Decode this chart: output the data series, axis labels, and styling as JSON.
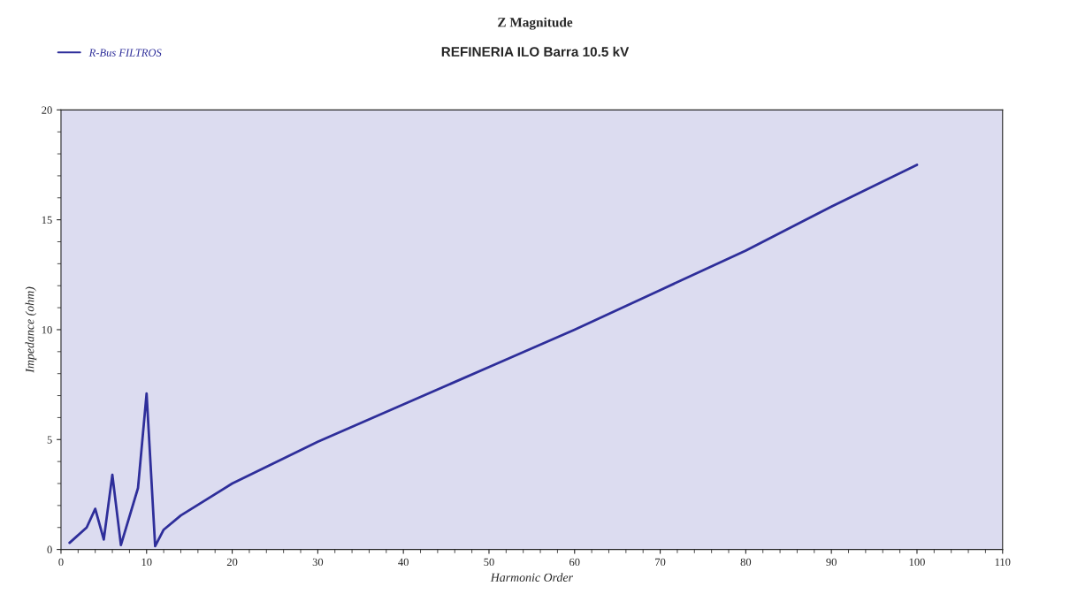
{
  "chart_data": {
    "type": "line",
    "title": "Z Magnitude",
    "subtitle": "REFINERIA ILO Barra 10.5 kV",
    "xlabel": "Harmonic Order",
    "ylabel": "Impedance (ohm)",
    "series": [
      {
        "name": "R-Bus FILTROS",
        "color": "#2e2e9a",
        "x": [
          1,
          3,
          4,
          5,
          6,
          7,
          9,
          10,
          11,
          12,
          14,
          20,
          30,
          40,
          50,
          60,
          70,
          80,
          90,
          100
        ],
        "values": [
          0.3,
          1.0,
          1.85,
          0.45,
          3.4,
          0.2,
          2.8,
          7.1,
          0.15,
          0.9,
          1.55,
          3.0,
          4.9,
          6.6,
          8.3,
          10.0,
          11.8,
          13.6,
          15.6,
          17.5
        ]
      }
    ],
    "xlim": [
      0,
      110
    ],
    "xticks": [
      0,
      10,
      20,
      30,
      40,
      50,
      60,
      70,
      80,
      90,
      100,
      110
    ],
    "ylim": [
      0,
      20
    ],
    "yticks": [
      0,
      5,
      10,
      15,
      20
    ],
    "grid": false,
    "legend": "top left",
    "marker": "none",
    "line_style": "solid"
  }
}
